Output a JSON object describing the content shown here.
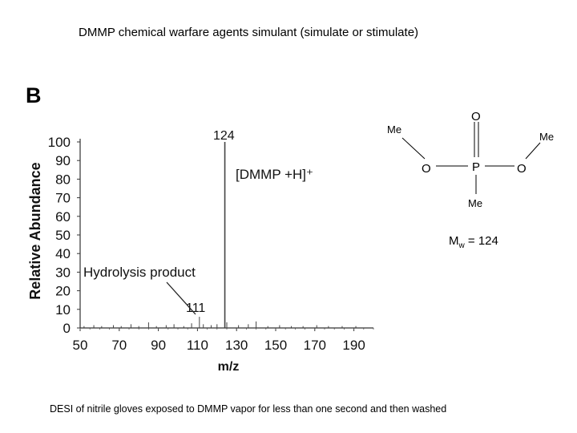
{
  "title": "DMMP chemical warfare agents simulant (simulate or stimulate)",
  "caption": "DESI of nitrile gloves exposed to DMMP vapor for less than one second and then washed",
  "panel_label": "B",
  "molecule": {
    "atom_O_top": "O",
    "atom_P": "P",
    "atom_O_left": "O",
    "atom_O_right": "O",
    "me_top_left": "Me",
    "me_top_right": "Me",
    "me_bottom": "Me",
    "mw_prefix": "M",
    "mw_sub": "w",
    "mw_suffix": " = 124"
  },
  "chart_data": {
    "type": "bar",
    "xlabel": "m/z",
    "ylabel": "Relative Abundance",
    "xlim": [
      50,
      200
    ],
    "ylim": [
      0,
      100
    ],
    "xticks": [
      50,
      70,
      90,
      110,
      130,
      150,
      170,
      190
    ],
    "yticks": [
      0,
      10,
      20,
      30,
      40,
      50,
      60,
      70,
      80,
      90,
      100
    ],
    "peaks": [
      {
        "x": 52,
        "y": 1
      },
      {
        "x": 57,
        "y": 1.5
      },
      {
        "x": 61,
        "y": 1
      },
      {
        "x": 67,
        "y": 1.5
      },
      {
        "x": 71,
        "y": 1
      },
      {
        "x": 76,
        "y": 2
      },
      {
        "x": 80,
        "y": 1
      },
      {
        "x": 85,
        "y": 3
      },
      {
        "x": 89,
        "y": 1
      },
      {
        "x": 94,
        "y": 1.5
      },
      {
        "x": 98,
        "y": 2
      },
      {
        "x": 103,
        "y": 1
      },
      {
        "x": 107,
        "y": 2.5
      },
      {
        "x": 111,
        "y": 6
      },
      {
        "x": 113,
        "y": 2
      },
      {
        "x": 117,
        "y": 1.5
      },
      {
        "x": 120,
        "y": 2
      },
      {
        "x": 124,
        "y": 100
      },
      {
        "x": 125,
        "y": 3
      },
      {
        "x": 131,
        "y": 1.5
      },
      {
        "x": 136,
        "y": 2
      },
      {
        "x": 140,
        "y": 3.5
      },
      {
        "x": 146,
        "y": 1
      },
      {
        "x": 152,
        "y": 1.5
      },
      {
        "x": 158,
        "y": 1
      },
      {
        "x": 164,
        "y": 1
      },
      {
        "x": 171,
        "y": 1.5
      },
      {
        "x": 177,
        "y": 1
      },
      {
        "x": 184,
        "y": 1
      },
      {
        "x": 191,
        "y": 1
      }
    ],
    "annotations": [
      {
        "text": "124",
        "kind": "peak-label"
      },
      {
        "text": "[DMMP +H]⁺",
        "kind": "ion-label"
      },
      {
        "text": "Hydrolysis product",
        "kind": "product-label"
      },
      {
        "text": "111",
        "kind": "peak-label"
      }
    ]
  }
}
